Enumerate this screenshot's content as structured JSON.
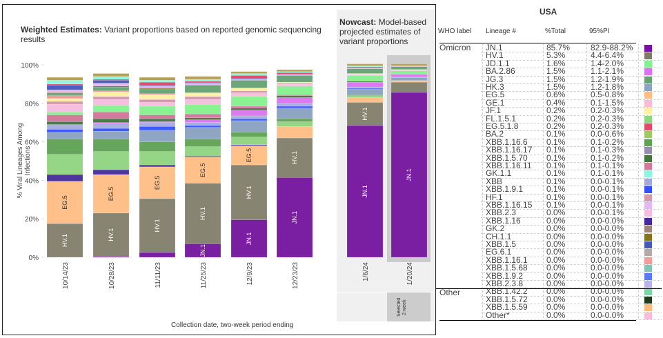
{
  "weighted": {
    "title_bold": "Weighted Estimates:",
    "title_rest": " Variant proportions based on reported genomic sequencing results"
  },
  "nowcast": {
    "title_bold": "Nowcast:",
    "title_rest": " Model-based projected estimates of variant proportions",
    "selected_label": "Selected 2-week"
  },
  "chart_data": {
    "type": "bar",
    "stacked": true,
    "title": "Weighted Estimates: Variant proportions based on reported genomic sequencing results",
    "xlabel": "Collection date, two-week period ending",
    "ylabel": "% Viral Lineages Among Infections",
    "ylim": [
      0,
      100
    ],
    "yticks": [
      "0%",
      "20%",
      "40%",
      "60%",
      "80%",
      "100%"
    ],
    "grid": false,
    "categories": [
      "10/14/23",
      "10/28/23",
      "11/11/23",
      "11/25/23",
      "12/9/23",
      "12/23/23",
      "1/6/24",
      "1/20/24"
    ],
    "nowcast_categories": [
      "1/6/24",
      "1/20/24"
    ],
    "selected_category": "1/20/24",
    "colors": {
      "JN.1": "#7a1fa2",
      "HV.1": "#878471",
      "EG.5": "#ffc08a",
      "XBB.1.16": "#4d35a0",
      "FL.1.5.1": "#94d685",
      "XBB.1.16.6": "#66a65c",
      "HK.3": "#8fa5c4",
      "XBB.1.9.1": "#3d5afe",
      "XBB": "#aab0de",
      "XBB.1.5.70": "#4a7a45",
      "XBB.1.16.11": "#d47a9c",
      "JD.1.1": "#8af293",
      "GE.1": "#f6bfe0",
      "HF.1": "#d69ab0",
      "JF.1": "#fff0a8",
      "XBB.1.16.1": "#f39a9a",
      "CH.1.1": "#7d7a1e",
      "XBB.1.16.15": "#e4b8f2",
      "XBB.1.5": "#4a5fbf",
      "GK.1.1": "#8cf7df",
      "BA.2.86": "#dc7af0",
      "JG.3": "#6aa67a",
      "EG.5.1.8": "#e0506e",
      "BA.2": "#a2cf6a",
      "XBB.1.16.17": "#9990b8",
      "Other": "#b8a050"
    },
    "series": [
      {
        "name": "JN.1",
        "values": [
          0.0,
          0.5,
          2.5,
          7.0,
          19.5,
          41.5,
          68.5,
          85.7
        ]
      },
      {
        "name": "HV.1",
        "values": [
          17.5,
          22.5,
          28.0,
          31.5,
          28.5,
          20.5,
          12.0,
          5.3
        ]
      },
      {
        "name": "EG.5",
        "values": [
          22.0,
          20.0,
          16.5,
          13.5,
          10.0,
          6.0,
          2.5,
          0.6
        ]
      },
      {
        "name": "XBB.1.16",
        "values": [
          3.5,
          2.5,
          1.0,
          0.5,
          0.5,
          0.0,
          0.0,
          0.0
        ]
      },
      {
        "name": "FL.1.5.1",
        "values": [
          10.5,
          9.5,
          7.0,
          5.0,
          4.0,
          2.5,
          1.0,
          0.2
        ]
      },
      {
        "name": "XBB.1.16.6",
        "values": [
          8.0,
          6.5,
          5.0,
          4.0,
          2.5,
          1.5,
          0.5,
          0.1
        ]
      },
      {
        "name": "HK.3",
        "values": [
          3.5,
          4.0,
          6.0,
          6.0,
          6.0,
          5.5,
          3.0,
          1.5
        ]
      },
      {
        "name": "XBB.1.9.1",
        "values": [
          1.5,
          1.5,
          2.0,
          1.0,
          1.0,
          1.0,
          0.5,
          0.1
        ]
      },
      {
        "name": "XBB",
        "values": [
          2.5,
          2.5,
          2.0,
          1.5,
          1.5,
          1.5,
          0.5,
          0.1
        ]
      },
      {
        "name": "BA.2.86",
        "values": [
          0.0,
          0.5,
          0.5,
          1.5,
          3.0,
          3.0,
          2.5,
          1.5
        ]
      },
      {
        "name": "XBB.1.5.70",
        "values": [
          1.5,
          2.0,
          1.5,
          1.0,
          1.0,
          1.0,
          0.5,
          0.1
        ]
      },
      {
        "name": "XBB.1.16.11",
        "values": [
          3.5,
          3.5,
          2.0,
          2.0,
          1.0,
          0.5,
          0.0,
          0.1
        ]
      },
      {
        "name": "JD.1.1",
        "values": [
          1.5,
          3.5,
          4.5,
          5.0,
          5.0,
          4.5,
          3.0,
          1.6
        ]
      },
      {
        "name": "GE.1",
        "values": [
          4.0,
          3.0,
          2.0,
          2.5,
          2.0,
          1.0,
          0.5,
          0.4
        ]
      },
      {
        "name": "HF.1",
        "values": [
          1.5,
          1.5,
          1.5,
          1.5,
          1.0,
          0.5,
          0.0,
          0.1
        ]
      },
      {
        "name": "JF.1",
        "values": [
          1.5,
          2.5,
          2.5,
          2.0,
          1.5,
          0.5,
          0.5,
          0.2
        ]
      },
      {
        "name": "XBB.1.16.1",
        "values": [
          1.5,
          0.5,
          0.5,
          0.0,
          0.0,
          0.0,
          0.0,
          0.0
        ]
      },
      {
        "name": "JG.3",
        "values": [
          1.0,
          2.0,
          2.5,
          4.0,
          4.0,
          3.5,
          2.5,
          1.5
        ]
      },
      {
        "name": "CH.1.1",
        "values": [
          0.5,
          0.5,
          0.5,
          0.0,
          0.0,
          0.0,
          0.0,
          0.0
        ]
      },
      {
        "name": "XBB.1.16.15",
        "values": [
          1.5,
          1.5,
          1.0,
          1.0,
          0.5,
          0.5,
          0.5,
          0.1
        ]
      },
      {
        "name": "XBB.1.5",
        "values": [
          2.5,
          1.5,
          0.5,
          0.5,
          0.5,
          0.0,
          0.0,
          0.0
        ]
      },
      {
        "name": "EG.5.1.8",
        "values": [
          0.5,
          0.5,
          1.5,
          0.5,
          1.5,
          1.0,
          0.5,
          0.2
        ]
      },
      {
        "name": "GK.1.1",
        "values": [
          2.0,
          1.5,
          1.0,
          1.0,
          1.0,
          0.5,
          0.5,
          0.1
        ]
      },
      {
        "name": "Other",
        "values": [
          1.5,
          1.5,
          1.5,
          1.5,
          1.0,
          1.0,
          1.0,
          1.0
        ]
      }
    ],
    "bar_labels": [
      {
        "category": "10/14/23",
        "labels": [
          "HV.1",
          "EG.5"
        ]
      },
      {
        "category": "10/28/23",
        "labels": [
          "HV.1",
          "EG.5"
        ]
      },
      {
        "category": "11/11/23",
        "labels": [
          "HV.1",
          "EG.5"
        ]
      },
      {
        "category": "11/25/23",
        "labels": [
          "JN.1",
          "HV.1",
          "EG.5"
        ]
      },
      {
        "category": "12/9/23",
        "labels": [
          "JN.1",
          "HV.1",
          "EG.5"
        ]
      },
      {
        "category": "12/23/23",
        "labels": [
          "JN.1",
          "HV.1"
        ]
      },
      {
        "category": "1/6/24",
        "labels": [
          "JN.1",
          "HV.1"
        ]
      },
      {
        "category": "1/20/24",
        "labels": [
          "JN.1"
        ]
      }
    ]
  },
  "table": {
    "region": "USA",
    "headers": [
      "WHO label",
      "Lineage #",
      "%Total",
      "95%PI"
    ],
    "groups": [
      {
        "who": "Omicron",
        "start_row": 0
      },
      {
        "who": "Other",
        "start_row": 31
      }
    ],
    "rows": [
      {
        "lineage": "JN.1",
        "total": "85.7%",
        "pi": "82.9-88.2%",
        "color": "#7a0fa8"
      },
      {
        "lineage": "HV.1",
        "total": "5.3%",
        "pi": "4.4-6.4%",
        "color": "#7d7a67"
      },
      {
        "lineage": "JD.1.1",
        "total": "1.6%",
        "pi": "1.4-2.0%",
        "color": "#82f291"
      },
      {
        "lineage": "BA.2.86",
        "total": "1.5%",
        "pi": "1.1-2.1%",
        "color": "#dc72f2"
      },
      {
        "lineage": "JG.3",
        "total": "1.5%",
        "pi": "1.2-1.9%",
        "color": "#66a372"
      },
      {
        "lineage": "HK.3",
        "total": "1.5%",
        "pi": "1.2-1.8%",
        "color": "#8ca3c4"
      },
      {
        "lineage": "EG.5",
        "total": "0.6%",
        "pi": "0.5-0.8%",
        "color": "#ffbd80"
      },
      {
        "lineage": "GE.1",
        "total": "0.4%",
        "pi": "0.1-1.5%",
        "color": "#f9bcd8"
      },
      {
        "lineage": "JF.1",
        "total": "0.2%",
        "pi": "0.2-0.3%",
        "color": "#fff0a6"
      },
      {
        "lineage": "FL.1.5.1",
        "total": "0.2%",
        "pi": "0.2-0.3%",
        "color": "#8fd683"
      },
      {
        "lineage": "EG.5.1.8",
        "total": "0.2%",
        "pi": "0.2-0.3%",
        "color": "#e04c6c"
      },
      {
        "lineage": "BA.2",
        "total": "0.1%",
        "pi": "0.0-0.6%",
        "color": "#9ccb62"
      },
      {
        "lineage": "XBB.1.16.6",
        "total": "0.1%",
        "pi": "0.1-0.2%",
        "color": "#5ea352"
      },
      {
        "lineage": "XBB.1.16.17",
        "total": "0.1%",
        "pi": "0.1-0.3%",
        "color": "#978fb3"
      },
      {
        "lineage": "XBB.1.5.70",
        "total": "0.1%",
        "pi": "0.1-0.2%",
        "color": "#44753c"
      },
      {
        "lineage": "XBB.1.16.11",
        "total": "0.1%",
        "pi": "0.1-0.1%",
        "color": "#d4789a"
      },
      {
        "lineage": "GK.1.1",
        "total": "0.1%",
        "pi": "0.1-0.1%",
        "color": "#8cf7e0"
      },
      {
        "lineage": "XBB",
        "total": "0.1%",
        "pi": "0.0-0.1%",
        "color": "#a2aadc"
      },
      {
        "lineage": "XBB.1.9.1",
        "total": "0.1%",
        "pi": "0.0-0.1%",
        "color": "#3450fa"
      },
      {
        "lineage": "HF.1",
        "total": "0.1%",
        "pi": "0.0-0.1%",
        "color": "#d699ab"
      },
      {
        "lineage": "XBB.1.16.15",
        "total": "0.1%",
        "pi": "0.0-0.1%",
        "color": "#e4b8f6"
      },
      {
        "lineage": "XBB.2.3",
        "total": "0.0%",
        "pi": "0.0-0.1%",
        "color": "#f7bde0"
      },
      {
        "lineage": "XBB.1.16",
        "total": "0.0%",
        "pi": "0.0-0.0%",
        "color": "#45289e"
      },
      {
        "lineage": "GK.2",
        "total": "0.0%",
        "pi": "0.0-0.0%",
        "color": "#a08478"
      },
      {
        "lineage": "CH.1.1",
        "total": "0.0%",
        "pi": "0.0-0.0%",
        "color": "#857516"
      },
      {
        "lineage": "XBB.1.5",
        "total": "0.0%",
        "pi": "0.0-0.0%",
        "color": "#4658b8"
      },
      {
        "lineage": "EG.6.1",
        "total": "0.0%",
        "pi": "0.0-0.0%",
        "color": "#b5a8a8"
      },
      {
        "lineage": "XBB.1.16.1",
        "total": "0.0%",
        "pi": "0.0-0.0%",
        "color": "#f69a9a"
      },
      {
        "lineage": "XBB.1.5.68",
        "total": "0.0%",
        "pi": "0.0-0.0%",
        "color": "#84c2b8"
      },
      {
        "lineage": "XBB.1.9.2",
        "total": "0.0%",
        "pi": "0.0-0.0%",
        "color": "#5a78fa"
      },
      {
        "lineage": "XBB.2.3.8",
        "total": "0.0%",
        "pi": "0.0-0.0%",
        "color": "#bcb3ea"
      },
      {
        "lineage": "XBB.1.42.2",
        "total": "0.0%",
        "pi": "0.0-0.0%",
        "color": "#7ad6a6"
      },
      {
        "lineage": "XBB.1.5.72",
        "total": "0.0%",
        "pi": "0.0-0.0%",
        "color": "#1f3d1a"
      },
      {
        "lineage": "XBB.1.5.59",
        "total": "0.0%",
        "pi": "0.0-0.0%",
        "color": "#ffbb7a"
      },
      {
        "lineage": "Other*",
        "total": "0.0%",
        "pi": "0.0-0.0%",
        "color": "#f9bcd8"
      }
    ]
  }
}
